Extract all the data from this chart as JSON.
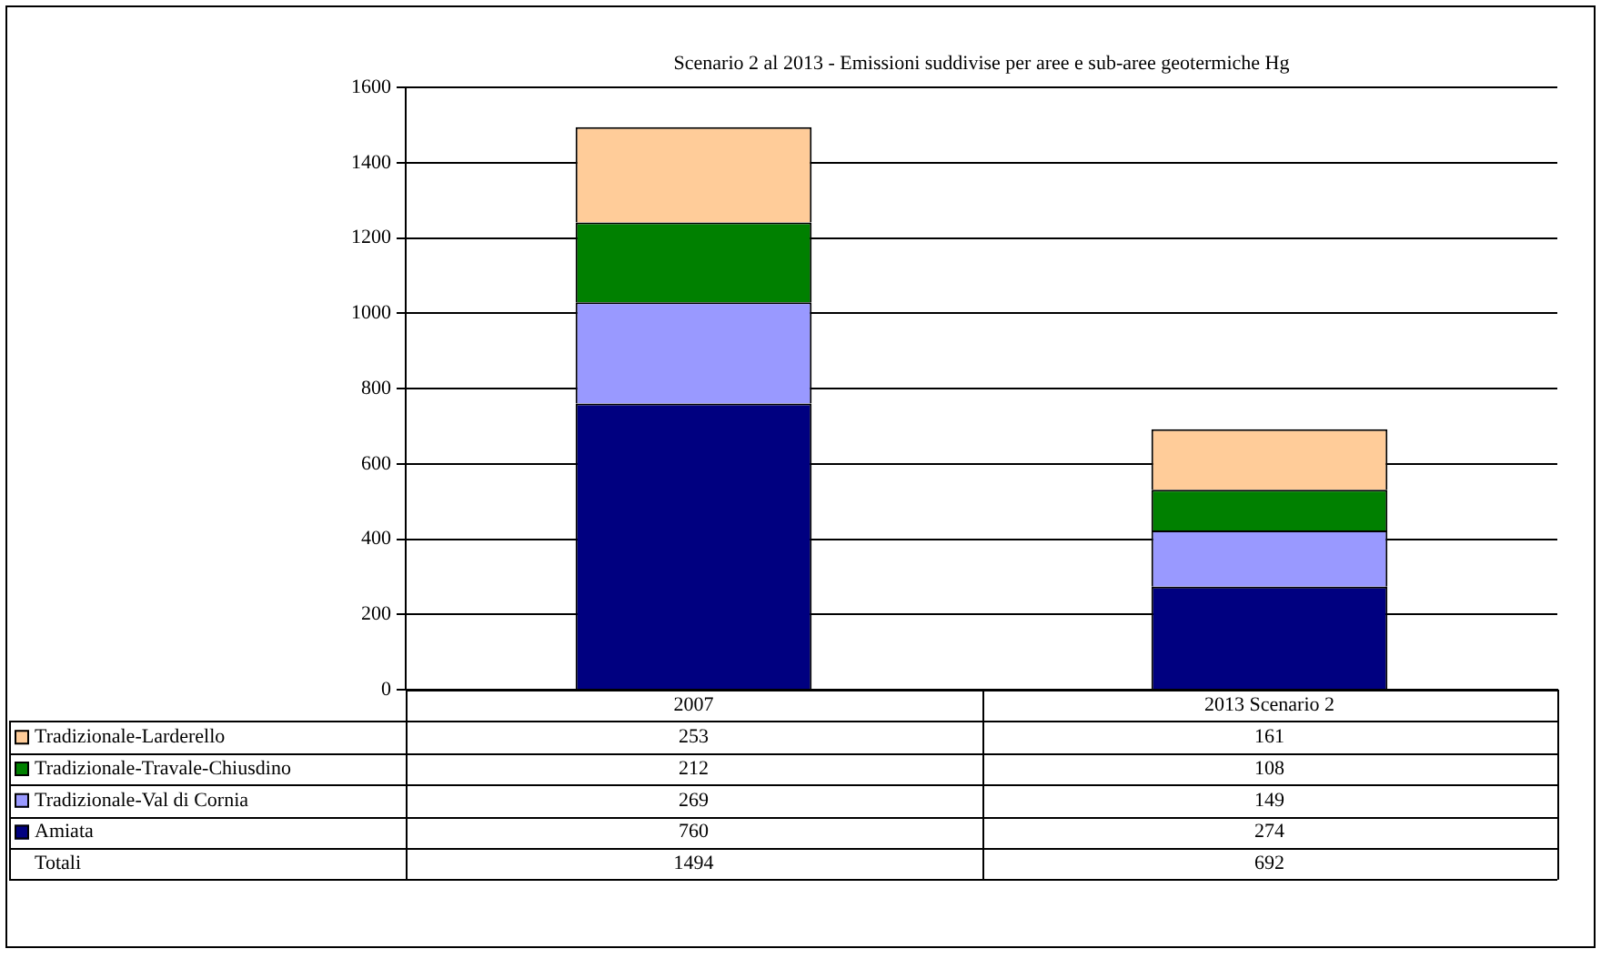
{
  "chart_data": {
    "type": "bar",
    "title": "Scenario 2 al 2013 - Emissioni suddivise per aree e sub-aree geotermiche Hg",
    "categories": [
      "2007",
      "2013 Scenario 2"
    ],
    "stacked": true,
    "series": [
      {
        "name": "Amiata",
        "color": "#000080",
        "values": [
          760,
          274
        ]
      },
      {
        "name": "Tradizionale-Val di Cornia",
        "color": "#9999ff",
        "values": [
          269,
          149
        ]
      },
      {
        "name": "Tradizionale-Travale-Chiusdino",
        "color": "#008000",
        "values": [
          212,
          108
        ]
      },
      {
        "name": "Tradizionale-Larderello",
        "color": "#ffcc99",
        "values": [
          253,
          161
        ]
      }
    ],
    "ylim": [
      0,
      1600
    ],
    "yticks": [
      0,
      200,
      400,
      600,
      800,
      1000,
      1200,
      1400,
      1600
    ],
    "grid": "y",
    "legend": "bottom",
    "data_labels": true,
    "annotations": [
      "Totali",
      "1494",
      "692"
    ]
  }
}
